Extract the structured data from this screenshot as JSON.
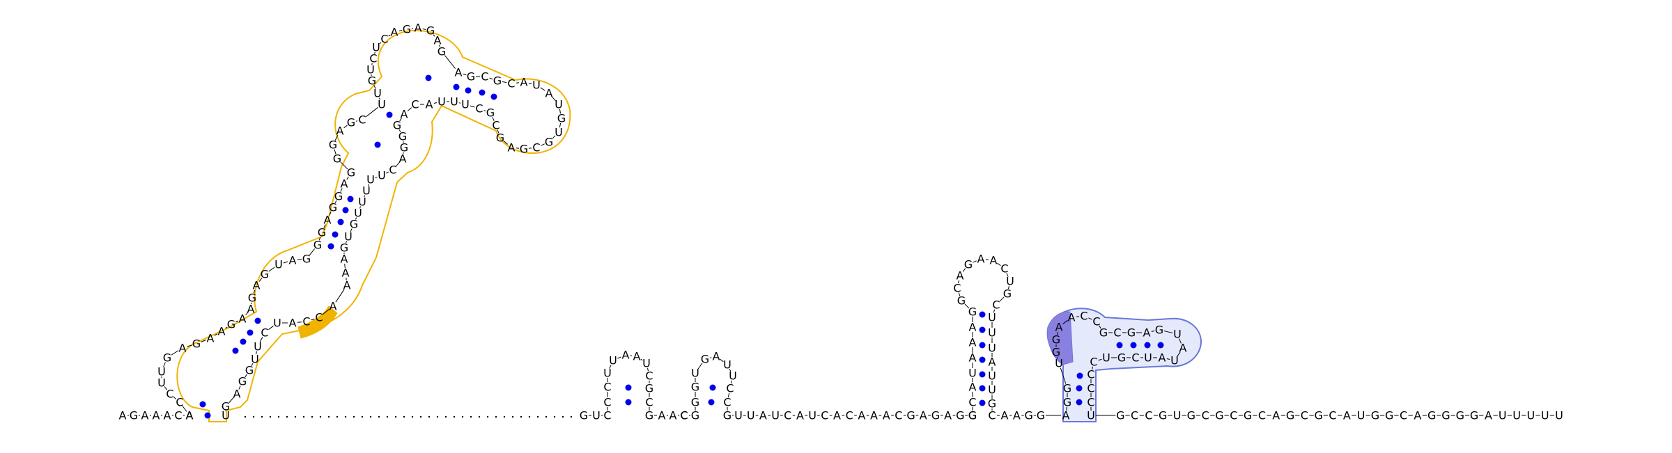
{
  "diagram": {
    "type": "rna-secondary-structure",
    "colors": {
      "background": "#ffffff",
      "nucleotide_text": "#000000",
      "base_pair_dot": "#0000ee",
      "backbone": "#000000",
      "highlight_outline_gold": "#f0b400",
      "highlight_fill_gold": "#f0b400",
      "highlight_outline_blue": "#6a78d8",
      "highlight_fill_blue": "#dfe4fb",
      "highlight_fill_violet": "#8a80e0"
    },
    "baseline_5prime": "A-G-A-A-A-C-A",
    "baseline_3prime": "U-G-C-C-G-U-G-C-G-C-G-C-A-G-C-G-C-A-U-G-G-C-A-G-G-G-G-A-U-U-U-U-U",
    "highlights": [
      {
        "name": "large multi-loop hairpin",
        "style": "gold outline"
      },
      {
        "name": "ACCA bulge",
        "style": "gold fill"
      },
      {
        "name": "right hairpin",
        "style": "blue outline"
      },
      {
        "name": "AGGU segment",
        "style": "violet fill"
      }
    ]
  }
}
